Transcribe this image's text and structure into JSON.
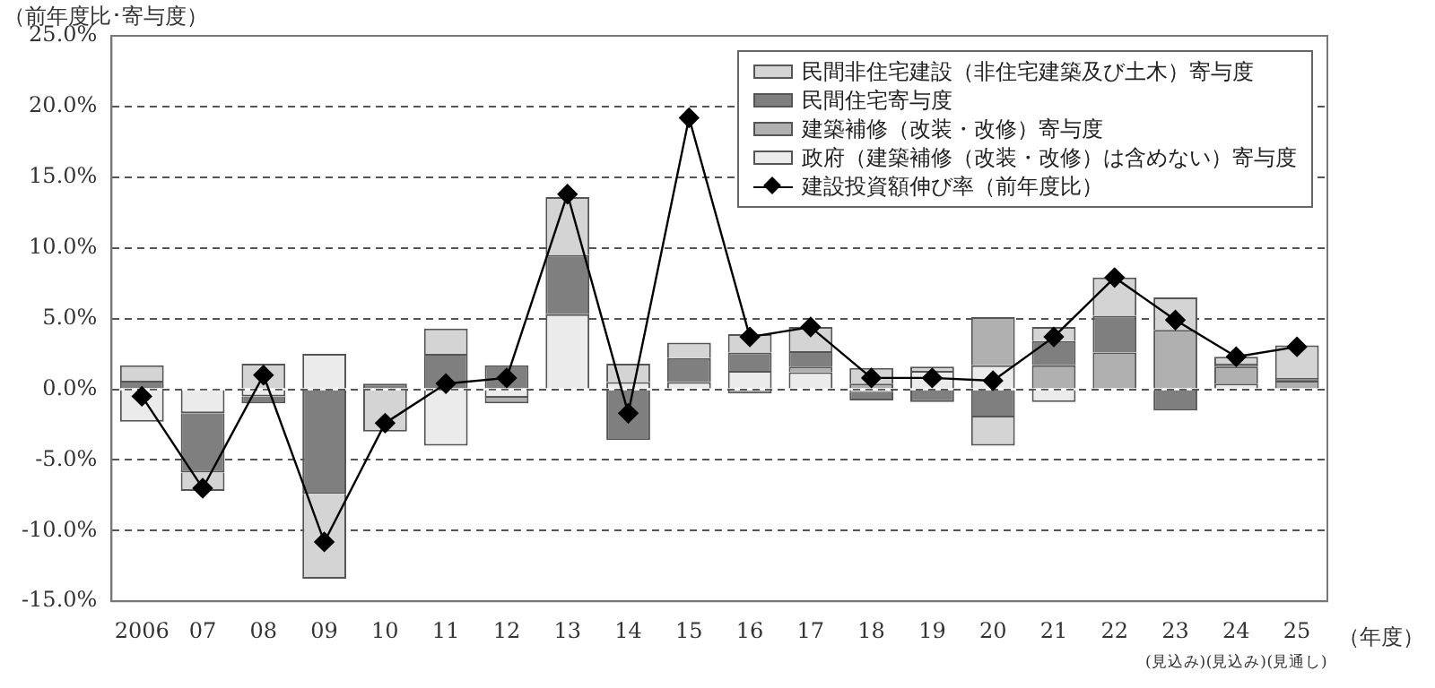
{
  "chart_data": {
    "type": "bar",
    "stacked": true,
    "ylabel": "（前年度比･寄与度）",
    "xlabel": "（年度）",
    "categories": [
      "2006",
      "07",
      "08",
      "09",
      "10",
      "11",
      "12",
      "13",
      "14",
      "15",
      "16",
      "17",
      "18",
      "19",
      "20",
      "21",
      "22",
      "23\n(見込み)",
      "24\n(見込み)",
      "25\n(見通し)"
    ],
    "series": [
      {
        "name": "政府（建築補修（改装・改修）は含めない）寄与度",
        "color": "#ebebeb",
        "values": [
          -2.3,
          -1.7,
          -0.5,
          2.5,
          null,
          -4.0,
          -0.6,
          5.3,
          0.5,
          0.5,
          1.3,
          1.2,
          -0.2,
          1.3,
          1.7,
          -0.9,
          null,
          null,
          0.4,
          0.1
        ]
      },
      {
        "name": "建築補修（改装・改修）寄与度",
        "color": "#b0b0b0",
        "values": [
          null,
          null,
          null,
          null,
          null,
          null,
          -0.4,
          null,
          null,
          null,
          -0.3,
          0.4,
          0.4,
          null,
          3.4,
          1.7,
          2.6,
          4.2,
          1.2,
          0.5
        ]
      },
      {
        "name": "民間住宅寄与度",
        "color": "#7f7f7f",
        "values": [
          0.6,
          -4.2,
          -0.5,
          -7.4,
          0.4,
          2.5,
          1.7,
          4.2,
          -3.6,
          1.7,
          1.3,
          1.1,
          -0.6,
          -0.9,
          -2.0,
          1.7,
          2.6,
          -1.5,
          0.2,
          0.2
        ]
      },
      {
        "name": "民間非住宅建設（非住宅建築及び土木）寄与度",
        "color": "#d4d4d4",
        "values": [
          1.1,
          -1.3,
          1.8,
          -6.0,
          -3.0,
          1.8,
          null,
          4.1,
          1.3,
          1.1,
          1.3,
          1.7,
          1.1,
          0.3,
          -2.0,
          1.0,
          2.7,
          2.3,
          0.5,
          2.3
        ]
      },
      {
        "name": "建設投資額伸び率（前年度比）",
        "type": "line",
        "color": "#000000",
        "marker": "diamond",
        "values": [
          -0.5,
          -7.0,
          1.0,
          -10.8,
          -2.4,
          0.4,
          0.8,
          13.8,
          -1.7,
          19.2,
          3.7,
          4.4,
          0.8,
          0.8,
          0.6,
          3.7,
          7.9,
          4.9,
          2.3,
          3.0
        ]
      }
    ],
    "ylim": [
      -15,
      25
    ],
    "yticks": [
      {
        "value": -15,
        "label": "-15.0%"
      },
      {
        "value": -10,
        "label": "-10.0%"
      },
      {
        "value": -5,
        "label": "-5.0%"
      },
      {
        "value": 0,
        "label": "0.0%"
      },
      {
        "value": 5,
        "label": "5.0%"
      },
      {
        "value": 10,
        "label": "10.0%"
      },
      {
        "value": 15,
        "label": "15.0%"
      },
      {
        "value": 20,
        "label": "20.0%"
      },
      {
        "value": 25,
        "label": "25.0%"
      }
    ],
    "grid": "y",
    "legend": "top right"
  }
}
